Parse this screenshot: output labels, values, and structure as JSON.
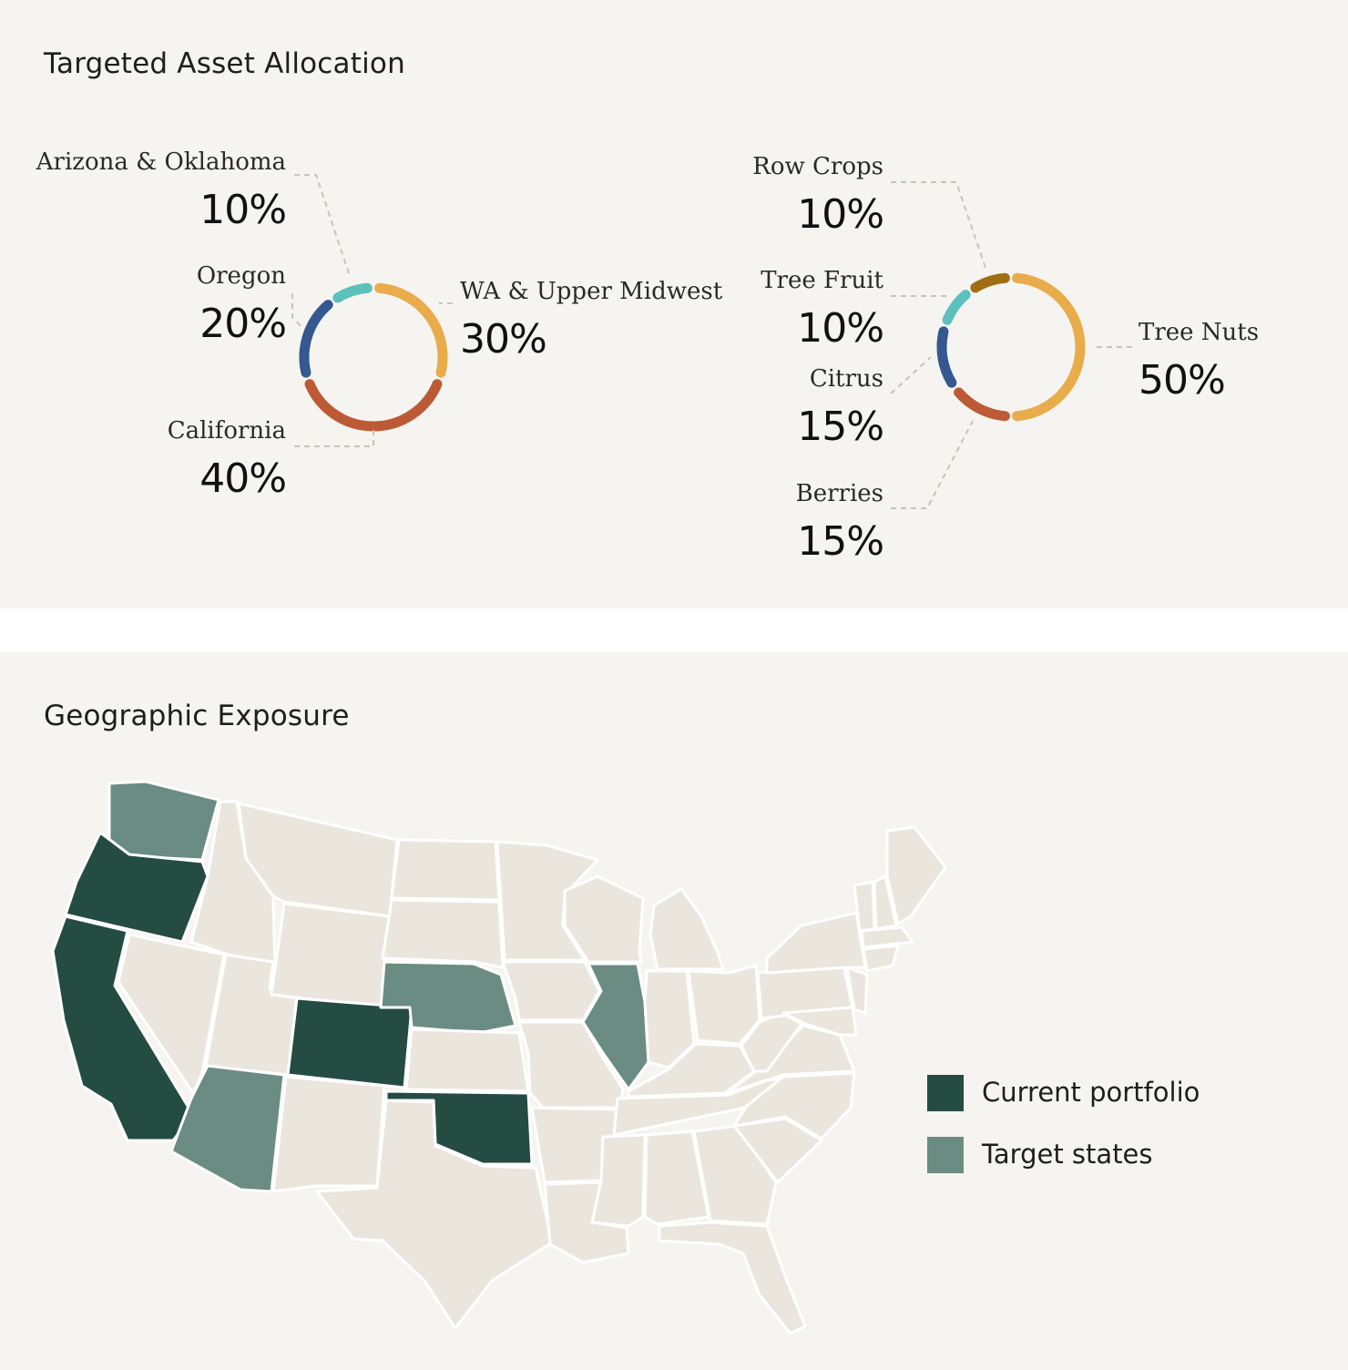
{
  "allocation": {
    "title": "Targeted Asset Allocation"
  },
  "geography": {
    "title": "Geographic Exposure",
    "legend": [
      {
        "label": "Current portfolio",
        "color": "#244c43"
      },
      {
        "label": "Target states",
        "color": "#6b8c82"
      }
    ],
    "base_state_color": "#ebe6dd",
    "current_portfolio_states": [
      "Oregon",
      "California",
      "Colorado",
      "Oklahoma"
    ],
    "target_states": [
      "Washington",
      "Arizona",
      "Nebraska",
      "Illinois"
    ]
  },
  "chart_data": [
    {
      "type": "pie",
      "variant": "donut",
      "title": "",
      "series": [
        {
          "name": "WA & Upper Midwest",
          "value": 30,
          "label": "30%",
          "color": "#e8ac4b"
        },
        {
          "name": "California",
          "value": 40,
          "label": "40%",
          "color": "#bd5a36"
        },
        {
          "name": "Oregon",
          "value": 20,
          "label": "20%",
          "color": "#34588f"
        },
        {
          "name": "Arizona & Oklahoma",
          "value": 10,
          "label": "10%",
          "color": "#5cc0bd"
        }
      ]
    },
    {
      "type": "pie",
      "variant": "donut",
      "title": "",
      "series": [
        {
          "name": "Tree Nuts",
          "value": 50,
          "label": "50%",
          "color": "#e8ac4b"
        },
        {
          "name": "Berries",
          "value": 15,
          "label": "15%",
          "color": "#bd5a36"
        },
        {
          "name": "Citrus",
          "value": 15,
          "label": "15%",
          "color": "#34588f"
        },
        {
          "name": "Tree Fruit",
          "value": 10,
          "label": "10%",
          "color": "#5cc0bd"
        },
        {
          "name": "Row Crops",
          "value": 10,
          "label": "10%",
          "color": "#a06f13"
        }
      ]
    }
  ]
}
